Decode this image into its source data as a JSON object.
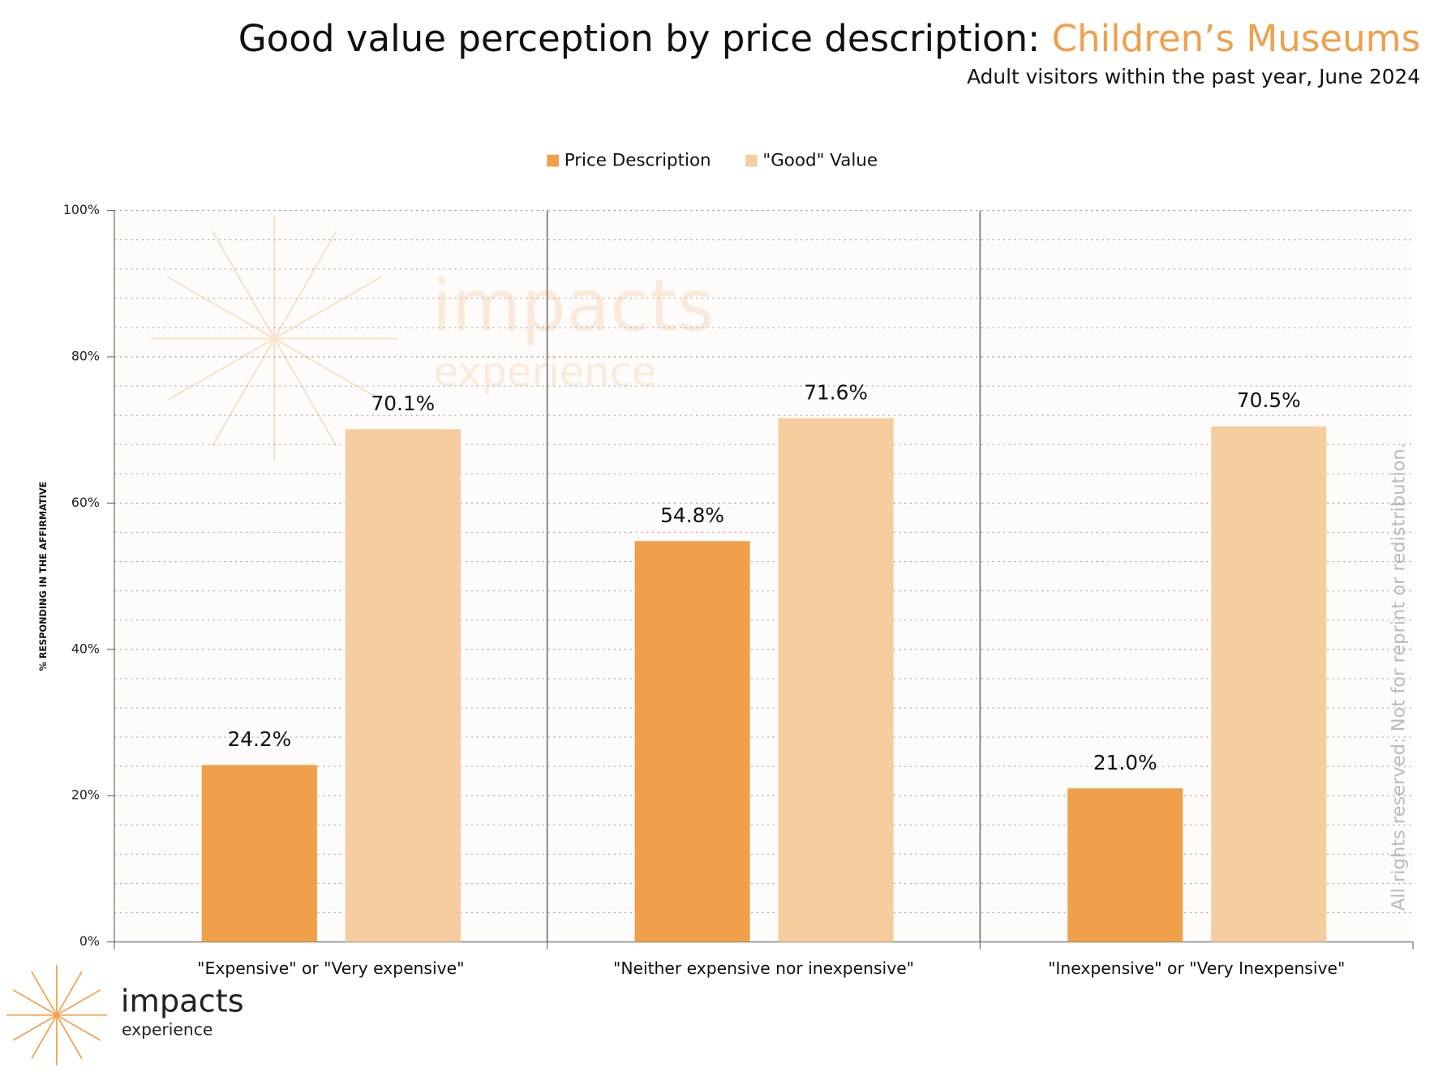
{
  "chart_data": {
    "type": "bar",
    "title": "Good value perception by price description: ",
    "title_highlight": "Children’s Museums",
    "subtitle": "Adult visitors within the past year, June 2024",
    "y_label": "% RESPONDING IN THE AFFIRMATIVE",
    "categories": [
      "\"Expensive\" or \"Very expensive\"",
      "\"Neither expensive nor inexpensive\"",
      "\"Inexpensive\" or \"Very Inexpensive\""
    ],
    "series": [
      {
        "name": "Price Description",
        "color": "#f0a04b",
        "values": [
          24.2,
          54.8,
          21.0
        ],
        "value_labels": [
          "24.2%",
          "54.8%",
          "21.0%"
        ]
      },
      {
        "name": "\"Good\" Value",
        "color": "#f6cd9e",
        "values": [
          70.1,
          71.6,
          70.5
        ],
        "value_labels": [
          "70.1%",
          "71.6%",
          "70.5%"
        ]
      }
    ],
    "ylim": [
      0,
      100
    ],
    "yticks": [
      {
        "value": 0,
        "label": "0%"
      },
      {
        "value": 20,
        "label": "20%"
      },
      {
        "value": 40,
        "label": "40%"
      },
      {
        "value": 60,
        "label": "60%"
      },
      {
        "value": 80,
        "label": "80%"
      },
      {
        "value": 100,
        "label": "100%"
      }
    ],
    "grid": true,
    "legend": "top"
  },
  "branding": {
    "watermark_name": "impacts",
    "watermark_sub": "experience",
    "logo_name": "impacts",
    "logo_sub": "experience",
    "notice": "All rights reserved: Not for reprint or redistribution."
  }
}
